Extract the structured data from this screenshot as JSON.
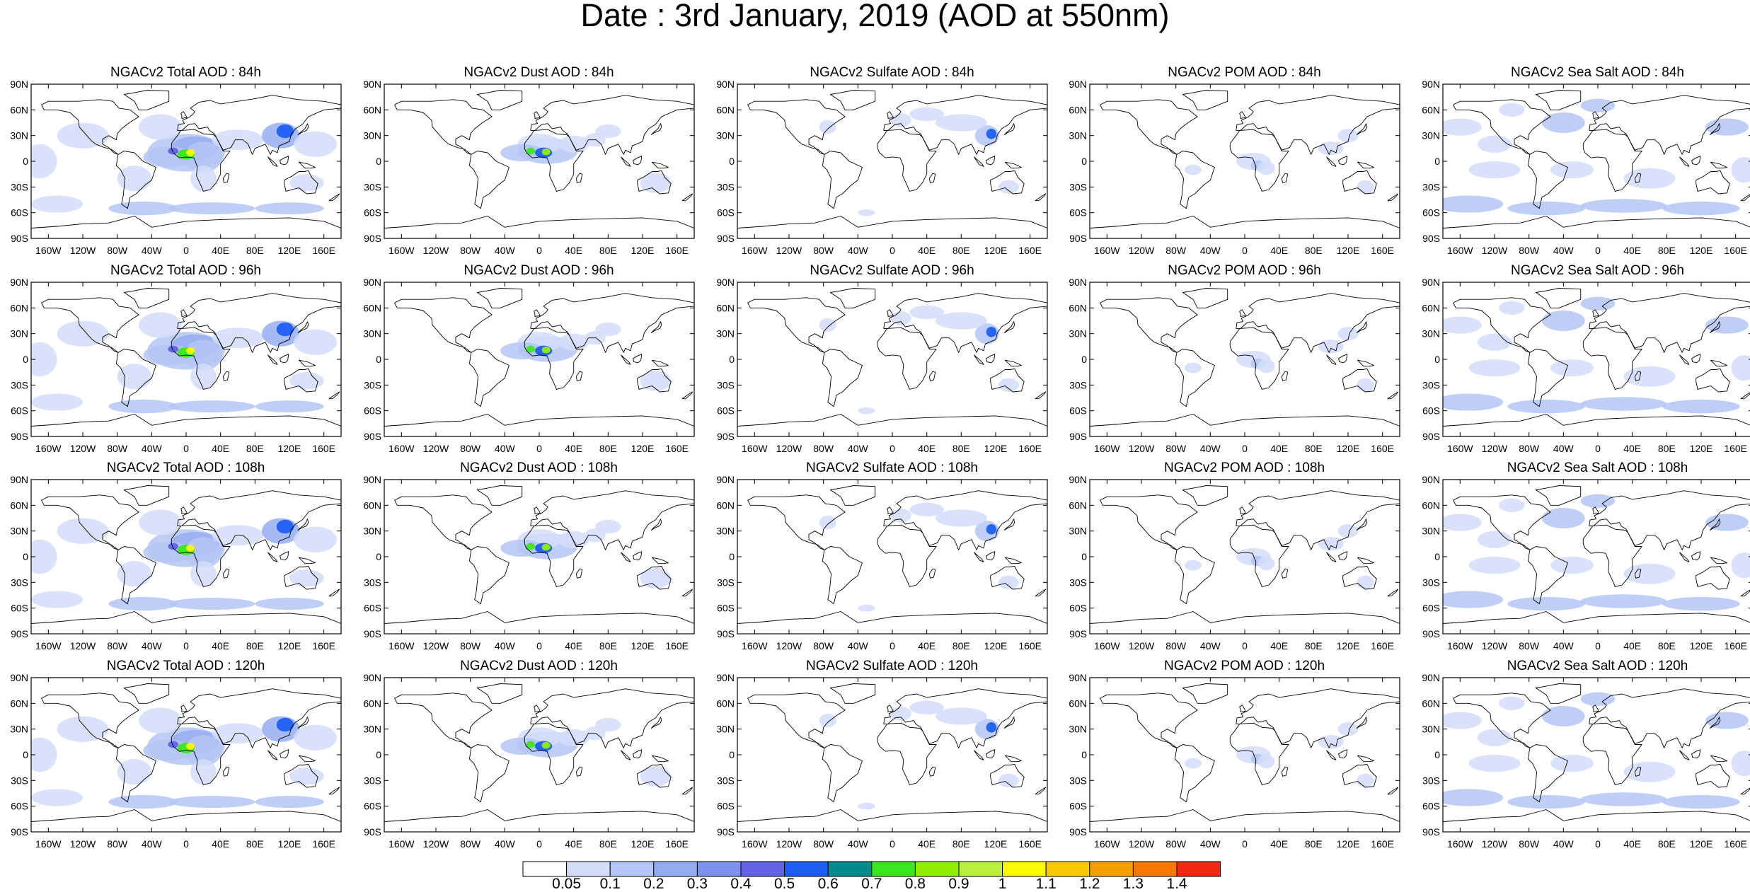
{
  "title": "Date : 3rd January, 2019 (AOD at 550nm)",
  "map_axes": {
    "lat_ticks": [
      "90N",
      "60N",
      "30N",
      "0",
      "30S",
      "60S",
      "90S"
    ],
    "lon_ticks": [
      "160W",
      "120W",
      "80W",
      "40W",
      "0",
      "40E",
      "80E",
      "120E",
      "160E"
    ],
    "lon_values": [
      -160,
      -120,
      -80,
      -40,
      0,
      40,
      80,
      120,
      160
    ],
    "lat_values": [
      90,
      60,
      30,
      0,
      -30,
      -60,
      -90
    ],
    "extent": {
      "lon": [
        -180,
        180
      ],
      "lat": [
        -90,
        90
      ]
    }
  },
  "panels": [
    {
      "id": "total-84",
      "title": "NGACv2 Total AOD : 84h",
      "variable": "total"
    },
    {
      "id": "dust-84",
      "title": "NGACv2 Dust AOD : 84h",
      "variable": "dust"
    },
    {
      "id": "sulfate-84",
      "title": "NGACv2 Sulfate AOD : 84h",
      "variable": "sulfate"
    },
    {
      "id": "pom-84",
      "title": "NGACv2 POM AOD : 84h",
      "variable": "pom"
    },
    {
      "id": "seasalt-84",
      "title": "NGACv2 Sea Salt AOD : 84h",
      "variable": "seasalt"
    },
    {
      "id": "total-96",
      "title": "NGACv2 Total AOD : 96h",
      "variable": "total"
    },
    {
      "id": "dust-96",
      "title": "NGACv2 Dust AOD : 96h",
      "variable": "dust"
    },
    {
      "id": "sulfate-96",
      "title": "NGACv2 Sulfate AOD : 96h",
      "variable": "sulfate"
    },
    {
      "id": "pom-96",
      "title": "NGACv2 POM AOD : 96h",
      "variable": "pom"
    },
    {
      "id": "seasalt-96",
      "title": "NGACv2 Sea Salt AOD : 96h",
      "variable": "seasalt"
    },
    {
      "id": "total-108",
      "title": "NGACv2 Total AOD : 108h",
      "variable": "total"
    },
    {
      "id": "dust-108",
      "title": "NGACv2 Dust AOD : 108h",
      "variable": "dust"
    },
    {
      "id": "sulfate-108",
      "title": "NGACv2 Sulfate AOD : 108h",
      "variable": "sulfate"
    },
    {
      "id": "pom-108",
      "title": "NGACv2 POM AOD : 108h",
      "variable": "pom"
    },
    {
      "id": "seasalt-108",
      "title": "NGACv2 Sea Salt AOD : 108h",
      "variable": "seasalt"
    },
    {
      "id": "total-120",
      "title": "NGACv2 Total AOD : 120h",
      "variable": "total"
    },
    {
      "id": "dust-120",
      "title": "NGACv2 Dust AOD : 120h",
      "variable": "dust"
    },
    {
      "id": "sulfate-120",
      "title": "NGACv2 Sulfate AOD : 120h",
      "variable": "sulfate"
    },
    {
      "id": "pom-120",
      "title": "NGACv2 POM AOD : 120h",
      "variable": "pom"
    },
    {
      "id": "seasalt-120",
      "title": "NGACv2 Sea Salt  AOD : 120h",
      "variable": "seasalt"
    }
  ],
  "colorbar": {
    "labels": [
      "0.05",
      "0.1",
      "0.2",
      "0.3",
      "0.4",
      "0.5",
      "0.6",
      "0.7",
      "0.8",
      "0.9",
      "1",
      "1.1",
      "1.2",
      "1.3",
      "1.4"
    ],
    "colors": [
      "#ffffff",
      "#d3ddfa",
      "#b4c6f5",
      "#95adf0",
      "#7c92ec",
      "#6363e4",
      "#1e5ef2",
      "#008c8c",
      "#3ce61e",
      "#90ee00",
      "#b8f03c",
      "#fafa00",
      "#fac800",
      "#f5a000",
      "#f57800",
      "#f02814"
    ]
  }
}
